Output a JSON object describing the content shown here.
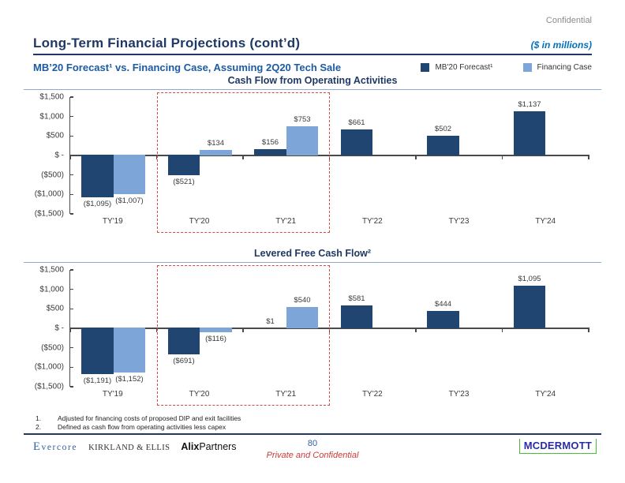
{
  "header": {
    "confidential": "Confidential",
    "title": "Long-Term Financial Projections (cont’d)",
    "units_note": "($ in millions)",
    "subtitle": "MB’20 Forecast¹ vs. Financing Case, Assuming 2Q20 Tech Sale"
  },
  "legend": [
    {
      "label": "MB'20 Forecast¹",
      "color": "#1F4570",
      "swatch_icon": "dark-blue-square"
    },
    {
      "label": "Financing Case",
      "color": "#7DA5D7",
      "swatch_icon": "light-blue-square"
    }
  ],
  "colors": {
    "navy": "#1F3864",
    "bright_blue": "#0070C0",
    "subtitle_blue": "#1C5BA3",
    "dark_series": "#1F4570",
    "light_series": "#7DA5D7",
    "highlight_red": "#D94A44",
    "axis_gray": "#4a4a4a",
    "footer_red": "#CC3B38",
    "mcdermott_blue": "#2B2DA8",
    "mcdermott_green": "#4CBB3C"
  },
  "chart_data": [
    {
      "type": "bar",
      "title": "Cash Flow from Operating Activities",
      "categories": [
        "TY'19",
        "TY'20",
        "TY'21",
        "TY'22",
        "TY'23",
        "TY'24"
      ],
      "series": [
        {
          "name": "MB'20 Forecast",
          "color": "#1F4570",
          "values": [
            -1095,
            -521,
            156,
            661,
            502,
            1137
          ],
          "labels": [
            "($1,095)",
            "($521)",
            "$156",
            "$661",
            "$502",
            "$1,137"
          ]
        },
        {
          "name": "Financing Case",
          "color": "#7DA5D7",
          "values": [
            -1007,
            134,
            753,
            null,
            null,
            null
          ],
          "labels": [
            "($1,007)",
            "$134",
            "$753",
            "",
            "",
            ""
          ]
        }
      ],
      "ylim": [
        -1500,
        1500
      ],
      "yticks": [
        "$1,500",
        "$1,000",
        "$500",
        "$ -",
        "($500)",
        "($1,000)",
        "($1,500)"
      ],
      "grid": false,
      "legend_position": "top-right-of-slide",
      "highlight_box": {
        "from_category_index": 1,
        "to_category_index": 2
      }
    },
    {
      "type": "bar",
      "title": "Levered Free Cash Flow²",
      "categories": [
        "TY'19",
        "TY'20",
        "TY'21",
        "TY'22",
        "TY'23",
        "TY'24"
      ],
      "series": [
        {
          "name": "MB'20 Forecast",
          "color": "#1F4570",
          "values": [
            -1191,
            -691,
            1,
            581,
            444,
            1095
          ],
          "labels": [
            "($1,191)",
            "($691)",
            "$1",
            "$581",
            "$444",
            "$1,095"
          ]
        },
        {
          "name": "Financing Case",
          "color": "#7DA5D7",
          "values": [
            -1152,
            -116,
            540,
            null,
            null,
            null
          ],
          "labels": [
            "($1,152)",
            "($116)",
            "$540",
            "",
            "",
            ""
          ]
        }
      ],
      "ylim": [
        -1500,
        1500
      ],
      "yticks": [
        "$1,500",
        "$1,000",
        "$500",
        "$ -",
        "($500)",
        "($1,000)",
        "($1,500)"
      ],
      "grid": false,
      "legend_position": "top-right-of-slide",
      "highlight_box": {
        "from_category_index": 1,
        "to_category_index": 2
      }
    }
  ],
  "footnotes": [
    {
      "num": "1.",
      "text": "Adjusted for financing costs of proposed DIP and exit facilities"
    },
    {
      "num": "2.",
      "text": "Defined as cash flow from operating activities less capex"
    }
  ],
  "footer": {
    "logo_evercore": "Evercore",
    "logo_kirkland": "KIRKLAND & ELLIS",
    "logo_alix_bold": "Alix",
    "logo_alix_regular": "Partners",
    "page_number": "80",
    "classification": "Private and Confidential",
    "logo_mcdermott": "MCDERMOTT"
  }
}
